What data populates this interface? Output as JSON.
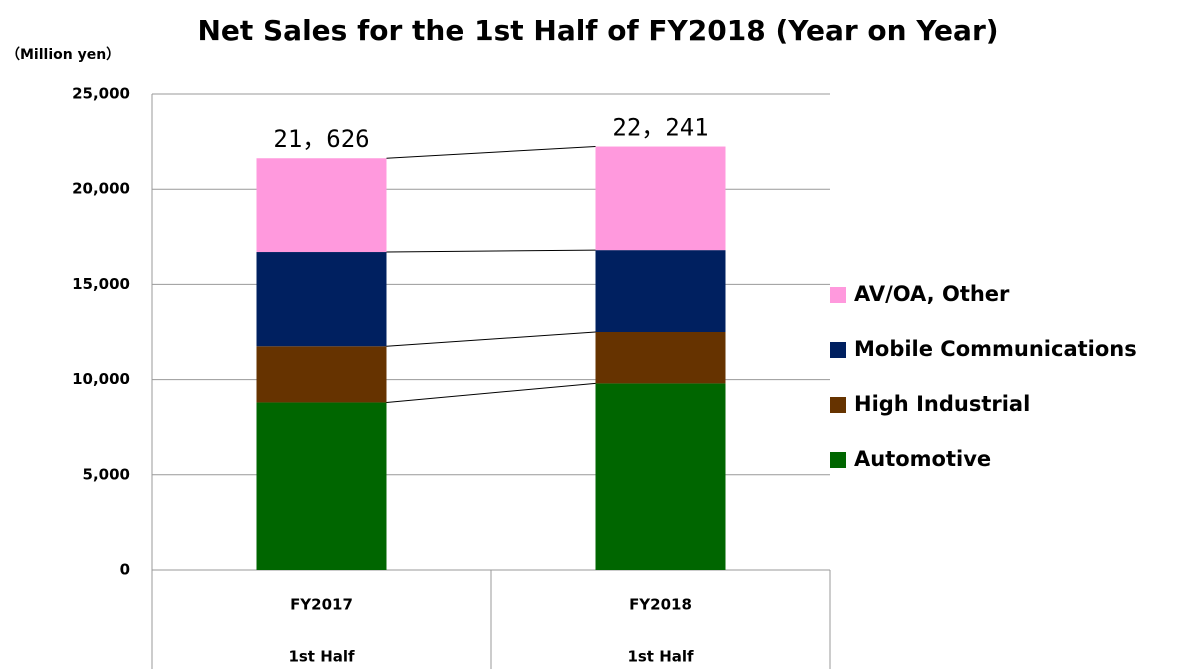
{
  "chart_data": {
    "type": "stacked_bar",
    "title": "Net Sales for the 1st Half of FY2018 (Year on Year)",
    "y_label": "（Million yen）",
    "categories": [
      [
        "FY2017",
        "1st Half"
      ],
      [
        "FY2018",
        "1st Half"
      ]
    ],
    "series": [
      {
        "name": "Automotive",
        "color": "#006600",
        "values": [
          8800,
          9800
        ]
      },
      {
        "name": "High Industrial",
        "color": "#663300",
        "values": [
          2950,
          2700
        ]
      },
      {
        "name": "Mobile Communications",
        "color": "#002060",
        "values": [
          4950,
          4300
        ]
      },
      {
        "name": "AV/OA, Other",
        "color": "#ff99dd",
        "values": [
          4926,
          5441
        ]
      }
    ],
    "totals": [
      21626,
      22241
    ],
    "total_labels": [
      "21，626",
      "22，241"
    ],
    "ylim": [
      0,
      25000
    ],
    "yticks": [
      0,
      {
        "value": 5000,
        "label": "5,000"
      },
      {
        "value": 10000,
        "label": "10,000"
      },
      {
        "value": 15000,
        "label": "15,000"
      },
      {
        "value": 20000,
        "label": "20,000"
      },
      {
        "value": 25000,
        "label": "25,000"
      }
    ],
    "grid": true,
    "legend": "right"
  }
}
